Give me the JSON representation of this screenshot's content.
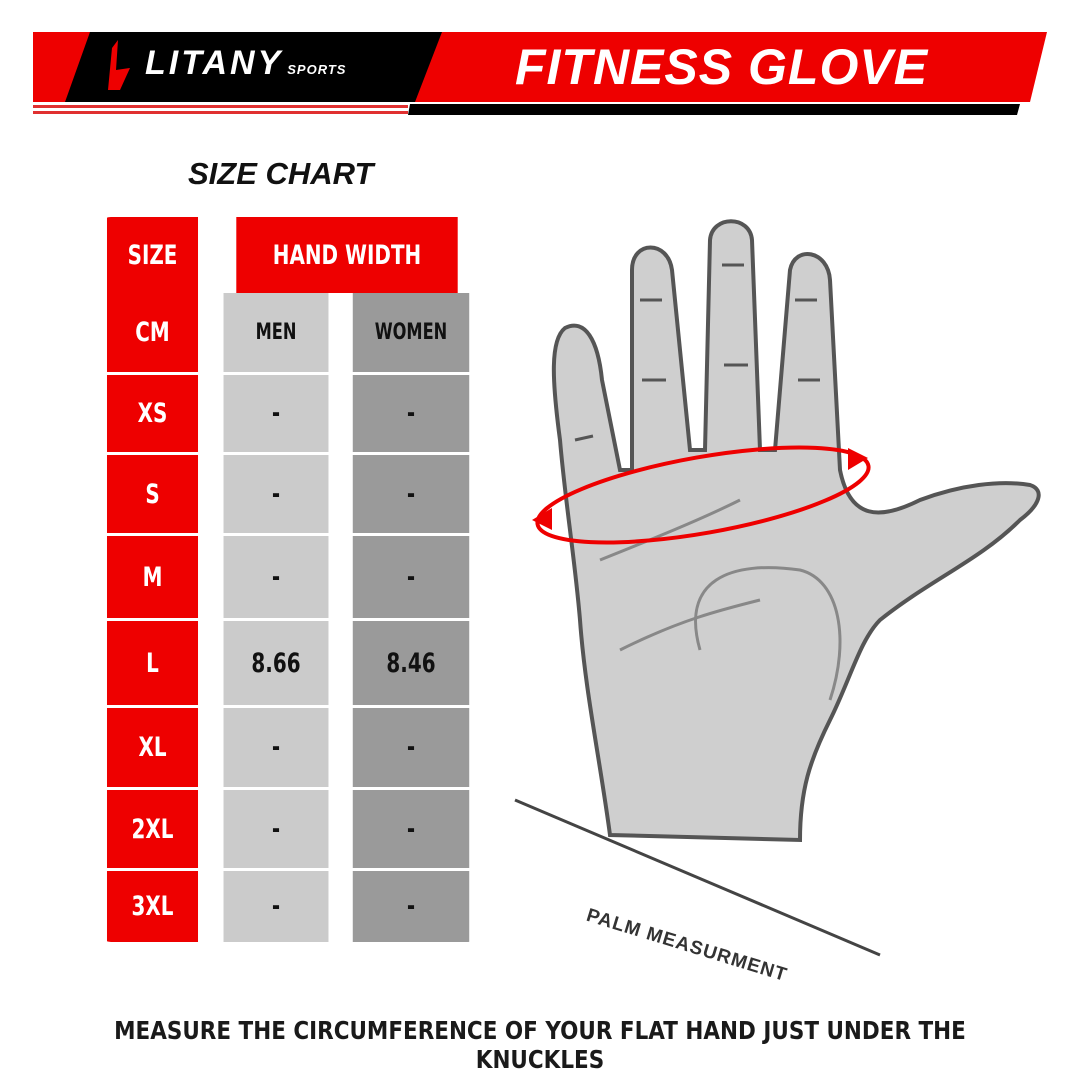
{
  "header": {
    "brand": "LITANY",
    "brand_sub": "SPORTS",
    "title": "FITNESS GLOVE"
  },
  "chart": {
    "title": "SIZE CHART",
    "size_label": "SIZE",
    "unit_label": "CM",
    "hand_width_label": "HAND WIDTH",
    "men_label": "MEN",
    "women_label": "WOMEN",
    "rows": [
      {
        "size": "XS",
        "men": "-",
        "women": "-"
      },
      {
        "size": "S",
        "men": "-",
        "women": "-"
      },
      {
        "size": "M",
        "men": "-",
        "women": "-"
      },
      {
        "size": "L",
        "men": "8.66",
        "women": "8.46"
      },
      {
        "size": "XL",
        "men": "-",
        "women": "-"
      },
      {
        "size": "2XL",
        "men": "-",
        "women": "-"
      },
      {
        "size": "3XL",
        "men": "-",
        "women": "-"
      }
    ]
  },
  "illustration": {
    "label": "PALM MEASURMENT"
  },
  "footer": {
    "note": "MEASURE THE CIRCUMFERENCE OF YOUR FLAT HAND JUST UNDER THE KNUCKLES"
  },
  "colors": {
    "red": "#ee0000",
    "black": "#000000",
    "light_gray": "#cbcbcb",
    "dark_gray": "#9a9a9a"
  }
}
